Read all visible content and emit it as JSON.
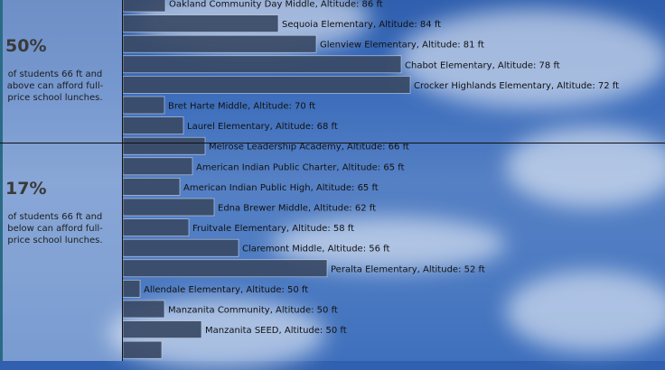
{
  "stats": [
    {
      "percent": "50%",
      "text": "of students 66 ft and above can afford full-price school lunches."
    },
    {
      "percent": "17%",
      "text": "of students 66 ft and below can afford full-price school lunches."
    }
  ],
  "colors": {
    "bar": "#3a4a66",
    "bar_stroke": "#c9d4e4",
    "sky": "#3b6cbb",
    "sidebar_accent": "#2a6a86"
  },
  "chart_data": {
    "type": "bar",
    "orientation": "horizontal",
    "bars": [
      {
        "label": "Oakland Community Day Middle, Altitude: 86 ft",
        "value": 47
      },
      {
        "label": "Sequoia Elementary, Altitude: 84 ft",
        "value": 172
      },
      {
        "label": "Glenview Elementary, Altitude: 81 ft",
        "value": 214
      },
      {
        "label": "Chabot Elementary, Altitude: 78 ft",
        "value": 308
      },
      {
        "label": "Crocker Highlands Elementary, Altitude: 72 ft",
        "value": 318
      },
      {
        "label": "Bret Harte Middle, Altitude: 70 ft",
        "value": 46
      },
      {
        "label": "Laurel Elementary, Altitude: 68 ft",
        "value": 67
      },
      {
        "label": "Melrose Leadership Academy, Altitude: 66 ft",
        "value": 91
      },
      {
        "label": "American Indian Public Charter, Altitude: 65 ft",
        "value": 77
      },
      {
        "label": "American Indian Public High, Altitude: 65 ft",
        "value": 63
      },
      {
        "label": "Edna Brewer Middle, Altitude: 62 ft",
        "value": 101
      },
      {
        "label": "Fruitvale Elementary, Altitude: 58 ft",
        "value": 73
      },
      {
        "label": "Claremont Middle, Altitude: 56 ft",
        "value": 128
      },
      {
        "label": "Peralta Elementary, Altitude: 52 ft",
        "value": 226
      },
      {
        "label": "Allendale Elementary, Altitude: 50 ft",
        "value": 19
      },
      {
        "label": "Manzanita Community, Altitude: 50 ft",
        "value": 46
      },
      {
        "label": "Manzanita SEED, Altitude: 50 ft",
        "value": 87
      },
      {
        "label": "",
        "value": 43
      }
    ]
  }
}
